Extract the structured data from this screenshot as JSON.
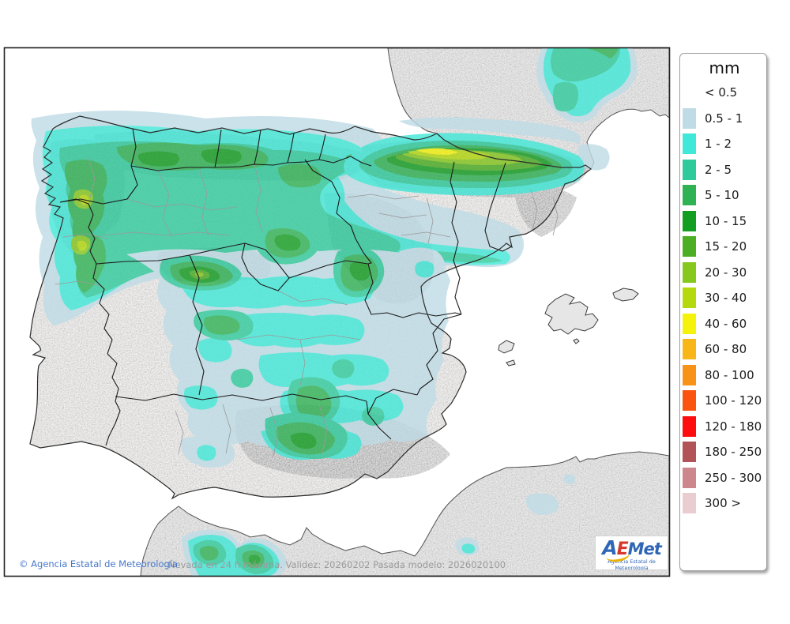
{
  "map": {
    "caption": "Nevada en 24 h máxima. Validez: 20260202 Pasada modelo: 2026020100",
    "copyright": "© Agencia Estatal de Meteorología"
  },
  "legend": {
    "title": "mm",
    "entries": [
      {
        "label": "< 0.5",
        "color": null
      },
      {
        "label": "0.5 - 1",
        "color": "#bfdce6"
      },
      {
        "label": "1 - 2",
        "color": "#40e8d7"
      },
      {
        "label": "2 - 5",
        "color": "#2fca9b"
      },
      {
        "label": "5 - 10",
        "color": "#2fb254"
      },
      {
        "label": "10 - 15",
        "color": "#149e21"
      },
      {
        "label": "15 - 20",
        "color": "#4cae23"
      },
      {
        "label": "20 - 30",
        "color": "#86c81e"
      },
      {
        "label": "30 - 40",
        "color": "#b5d90f"
      },
      {
        "label": "40 - 60",
        "color": "#f5f20c"
      },
      {
        "label": "60 - 80",
        "color": "#f9b618"
      },
      {
        "label": "80 - 100",
        "color": "#f99318"
      },
      {
        "label": "100 - 120",
        "color": "#fb5410"
      },
      {
        "label": "120 - 180",
        "color": "#fd0d0d"
      },
      {
        "label": "180 - 250",
        "color": "#b25358"
      },
      {
        "label": "250 - 300",
        "color": "#cd878c"
      },
      {
        "label": "300 >",
        "color": "#eacdd0"
      }
    ]
  },
  "logo": {
    "a": "A",
    "e": "E",
    "met": "Met",
    "subtitle": "Agencia Estatal de Meteorología"
  }
}
